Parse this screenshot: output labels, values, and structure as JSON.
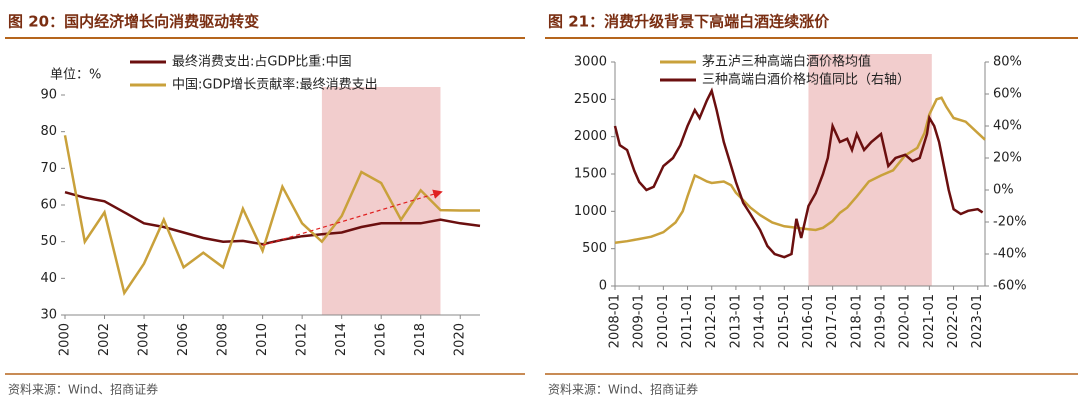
{
  "chart_data": [
    {
      "type": "line",
      "title": "图 20：国内经济增长向消费驱动转变",
      "unit": "单位：%",
      "x": [
        2000,
        2001,
        2002,
        2003,
        2004,
        2005,
        2006,
        2007,
        2008,
        2009,
        2010,
        2011,
        2012,
        2013,
        2014,
        2015,
        2016,
        2017,
        2018,
        2019,
        2020,
        2021
      ],
      "series": [
        {
          "name": "最终消费支出:占GDP比重:中国",
          "color": "#6b0f0f",
          "values": [
            63.5,
            62,
            61,
            58,
            55,
            54,
            52.5,
            51,
            50,
            50.2,
            49.3,
            50.5,
            51.5,
            52,
            52.5,
            54,
            55,
            55,
            55,
            56,
            55,
            54.3
          ]
        },
        {
          "name": "中国:GDP增长贡献率:最终消费支出",
          "color": "#c9a13b",
          "values": [
            79,
            50,
            58,
            36,
            44,
            56,
            43,
            47,
            43,
            59,
            47.5,
            65,
            55,
            50,
            57,
            69,
            66,
            56,
            64,
            58.6,
            58.5,
            58.5
          ]
        }
      ],
      "xlim": [
        2000,
        2021
      ],
      "xticks": [
        2000,
        2002,
        2004,
        2006,
        2008,
        2010,
        2012,
        2014,
        2016,
        2018,
        2020
      ],
      "ylim": [
        30,
        90
      ],
      "yticks": [
        30,
        40,
        50,
        60,
        70,
        80,
        90
      ],
      "shade": [
        2013,
        2019
      ],
      "arrow": [
        [
          2010,
          49
        ],
        [
          2019,
          63.5
        ]
      ],
      "source": "资料来源：Wind、招商证券"
    },
    {
      "type": "line",
      "title": "图 21：消费升级背景下高端白酒连续涨价",
      "series": [
        {
          "name": "茅五泸三种高端白酒价格均值",
          "color": "#c9a13b",
          "x": [
            2008.0,
            2008.5,
            2009.0,
            2009.5,
            2010.0,
            2010.5,
            2010.8,
            2011.0,
            2011.3,
            2011.5,
            2011.8,
            2012.0,
            2012.5,
            2012.8,
            2013.0,
            2013.3,
            2013.6,
            2014.0,
            2014.5,
            2015.0,
            2015.5,
            2016.0,
            2016.3,
            2016.6,
            2017.0,
            2017.3,
            2017.6,
            2018.0,
            2018.5,
            2019.0,
            2019.5,
            2020.0,
            2020.5,
            2020.8,
            2021.0,
            2021.3,
            2021.5,
            2021.7,
            2022.0,
            2022.5,
            2023.0,
            2023.3
          ],
          "values": [
            580,
            600,
            630,
            660,
            720,
            850,
            1000,
            1200,
            1480,
            1450,
            1400,
            1380,
            1400,
            1350,
            1250,
            1150,
            1050,
            950,
            850,
            800,
            780,
            760,
            750,
            780,
            870,
            980,
            1050,
            1200,
            1400,
            1480,
            1550,
            1750,
            1850,
            2050,
            2300,
            2500,
            2520,
            2400,
            2250,
            2200,
            2050,
            1960
          ]
        },
        {
          "name": "三种高端白酒价格均值同比（右轴）",
          "color": "#6b0f0f",
          "axis": "y2",
          "x": [
            2008.0,
            2008.2,
            2008.5,
            2008.8,
            2009.0,
            2009.3,
            2009.6,
            2010.0,
            2010.4,
            2010.7,
            2011.0,
            2011.3,
            2011.5,
            2011.8,
            2012.0,
            2012.2,
            2012.5,
            2012.8,
            2013.0,
            2013.3,
            2013.6,
            2014.0,
            2014.3,
            2014.6,
            2015.0,
            2015.3,
            2015.5,
            2015.7,
            2016.0,
            2016.3,
            2016.6,
            2016.8,
            2017.0,
            2017.3,
            2017.6,
            2017.8,
            2018.0,
            2018.3,
            2018.6,
            2019.0,
            2019.3,
            2019.6,
            2020.0,
            2020.3,
            2020.6,
            2020.9,
            2021.0,
            2021.2,
            2021.4,
            2021.6,
            2021.8,
            2022.0,
            2022.3,
            2022.6,
            2023.0,
            2023.2
          ],
          "values": [
            40,
            28,
            25,
            12,
            5,
            0,
            2,
            15,
            20,
            28,
            40,
            50,
            45,
            56,
            62,
            50,
            30,
            15,
            5,
            -8,
            -15,
            -25,
            -35,
            -40,
            -42,
            -40,
            -18,
            -30,
            -10,
            -2,
            10,
            20,
            40,
            30,
            32,
            25,
            35,
            25,
            30,
            35,
            15,
            20,
            22,
            18,
            20,
            35,
            45,
            40,
            30,
            15,
            0,
            -12,
            -15,
            -13,
            -12,
            -14
          ]
        }
      ],
      "xlim": [
        2008,
        2023.3
      ],
      "xticks": [
        {
          "value": 2008,
          "label": "2008-01"
        },
        {
          "value": 2009,
          "label": "2009-01"
        },
        {
          "value": 2010,
          "label": "2010-01"
        },
        {
          "value": 2011,
          "label": "2011-01"
        },
        {
          "value": 2012,
          "label": "2012-01"
        },
        {
          "value": 2013,
          "label": "2013-01"
        },
        {
          "value": 2014,
          "label": "2014-01"
        },
        {
          "value": 2015,
          "label": "2015-01"
        },
        {
          "value": 2016,
          "label": "2016-01"
        },
        {
          "value": 2017,
          "label": "2017-01"
        },
        {
          "value": 2018,
          "label": "2018-01"
        },
        {
          "value": 2019,
          "label": "2019-01"
        },
        {
          "value": 2020,
          "label": "2020-01"
        },
        {
          "value": 2021,
          "label": "2021-01"
        },
        {
          "value": 2022,
          "label": "2022-01"
        },
        {
          "value": 2023,
          "label": "2023-01"
        }
      ],
      "ylim": [
        0,
        3000
      ],
      "yticks": [
        0,
        500,
        1000,
        1500,
        2000,
        2500,
        3000
      ],
      "y2lim": [
        -60,
        80
      ],
      "y2ticks": [
        {
          "value": -60,
          "label": "-60%"
        },
        {
          "value": -40,
          "label": "-40%"
        },
        {
          "value": -20,
          "label": "-20%"
        },
        {
          "value": 0,
          "label": "0%"
        },
        {
          "value": 20,
          "label": "20%"
        },
        {
          "value": 40,
          "label": "40%"
        },
        {
          "value": 60,
          "label": "60%"
        },
        {
          "value": 80,
          "label": "80%"
        }
      ],
      "shade": [
        2016,
        2021.1
      ],
      "source": "资料来源：Wind、招商证券"
    }
  ]
}
